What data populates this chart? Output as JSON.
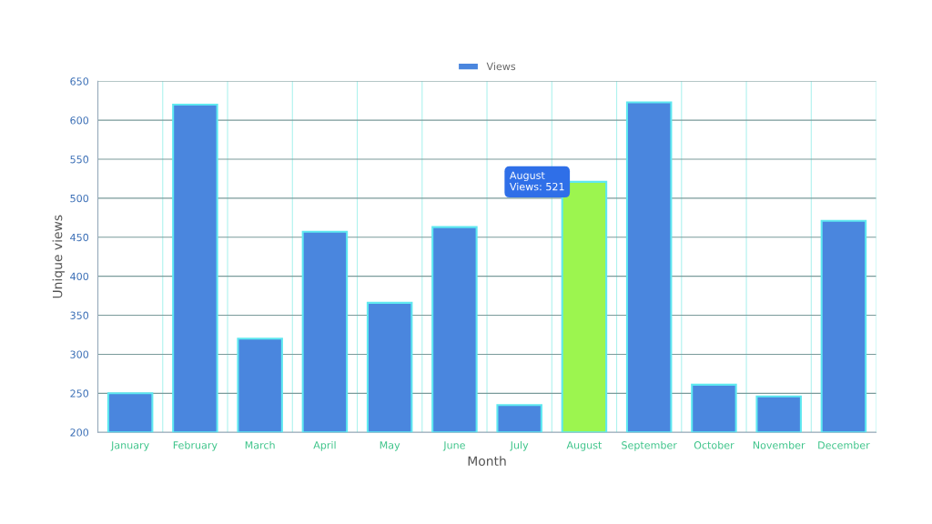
{
  "chart_data": {
    "type": "bar",
    "xlabel": "Month",
    "ylabel": "Unique views",
    "categories": [
      "January",
      "February",
      "March",
      "April",
      "May",
      "June",
      "July",
      "August",
      "September",
      "October",
      "November",
      "December"
    ],
    "series": [
      {
        "name": "Views",
        "color": "#4a86de",
        "values": [
          250,
          620,
          320,
          457,
          366,
          463,
          235,
          521,
          623,
          261,
          246,
          471
        ],
        "colors": [
          "#4a86de",
          "#4a86de",
          "#4a86de",
          "#4a86de",
          "#4a86de",
          "#4a86de",
          "#4a86de",
          "#9cf54f",
          "#4a86de",
          "#4a86de",
          "#4a86de",
          "#4a86de"
        ]
      }
    ],
    "ylim": [
      200,
      650
    ],
    "yticks": [
      200,
      250,
      300,
      350,
      400,
      450,
      500,
      550,
      600,
      650
    ],
    "grid": true,
    "legend": "top",
    "annotations": [
      {
        "text": "August\nViews: 521",
        "x": "August",
        "y": 521
      }
    ]
  }
}
